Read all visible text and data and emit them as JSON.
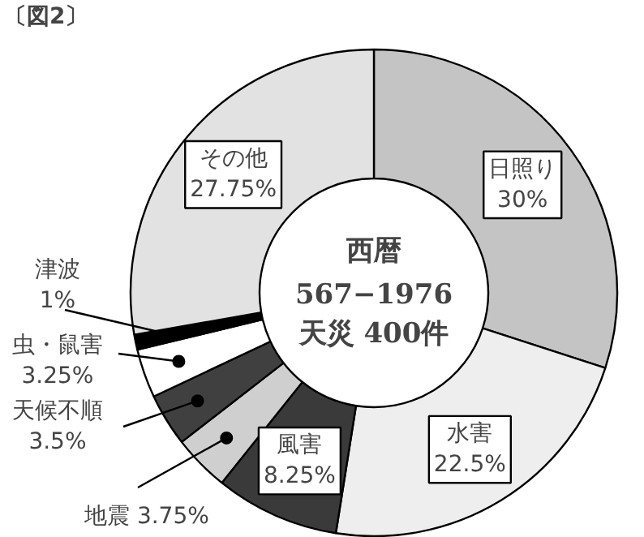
{
  "chart_data": {
    "type": "donut",
    "title": "〔図2〕",
    "annotations": [
      "西暦",
      "567−1976",
      "天災 400件"
    ],
    "categories": [
      "日照り",
      "水害",
      "風害",
      "地震",
      "天候不順",
      "虫・鼠害",
      "津波",
      "その他"
    ],
    "values": [
      30,
      22.5,
      8.25,
      3.75,
      3.5,
      3.25,
      1,
      27.75
    ],
    "value_labels": [
      "30%",
      "22.5%",
      "8.25%",
      "3.75%",
      "3.5%",
      "3.25%",
      "1%",
      "27.75%"
    ],
    "colors": [
      "#c4c4c4",
      "#eeeeee",
      "#3a3a3a",
      "#cfcfcf",
      "#404040",
      "#ffffff",
      "#000000",
      "#e2e2e2"
    ],
    "legend": false
  }
}
